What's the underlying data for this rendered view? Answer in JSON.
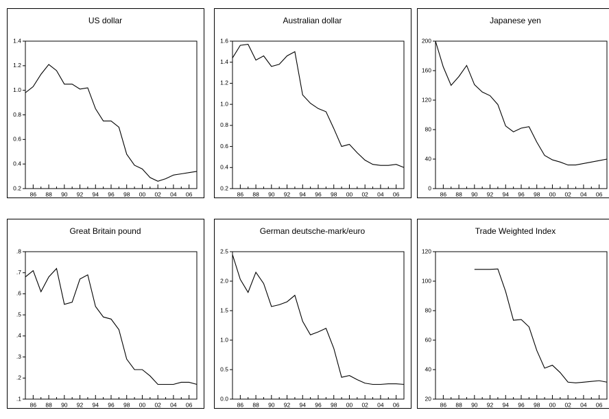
{
  "chart_data": [
    {
      "type": "line",
      "title": "US dollar",
      "color": "#000000",
      "x": [
        1985,
        1986,
        1987,
        1988,
        1989,
        1990,
        1991,
        1992,
        1993,
        1994,
        1995,
        1996,
        1997,
        1998,
        1999,
        2000,
        2001,
        2002,
        2003,
        2004,
        2005,
        2006,
        2007
      ],
      "values": [
        0.98,
        1.03,
        1.13,
        1.21,
        1.16,
        1.05,
        1.05,
        1.01,
        1.02,
        0.85,
        0.75,
        0.75,
        0.7,
        0.48,
        0.39,
        0.36,
        0.29,
        0.26,
        0.28,
        0.31,
        0.32,
        0.33,
        0.34
      ],
      "xlim": [
        1985,
        2007
      ],
      "ylim": [
        0.2,
        1.4
      ],
      "yticks": [
        0.2,
        0.4,
        0.6,
        0.8,
        {
          "value": 1,
          "label": "1.0"
        },
        1.2,
        1.4
      ],
      "xticks": [
        {
          "value": 1986,
          "label": "86"
        },
        {
          "value": 1988,
          "label": "88"
        },
        {
          "value": 1990,
          "label": "90"
        },
        {
          "value": 1992,
          "label": "92"
        },
        {
          "value": 1994,
          "label": "94"
        },
        {
          "value": 1996,
          "label": "96"
        },
        {
          "value": 1998,
          "label": "98"
        },
        {
          "value": 2000,
          "label": "00"
        },
        {
          "value": 2002,
          "label": "02"
        },
        {
          "value": 2004,
          "label": "04"
        },
        {
          "value": 2006,
          "label": "06"
        }
      ],
      "xminorticks": [
        1987,
        1989,
        1991,
        1993,
        1995,
        1997,
        1999,
        2001,
        2003,
        2005
      ]
    },
    {
      "type": "line",
      "title": "Australian dollar",
      "color": "#000000",
      "x": [
        1985,
        1986,
        1987,
        1988,
        1989,
        1990,
        1991,
        1992,
        1993,
        1994,
        1995,
        1996,
        1997,
        1998,
        1999,
        2000,
        2001,
        2002,
        2003,
        2004,
        2005,
        2006,
        2007
      ],
      "values": [
        1.44,
        1.56,
        1.57,
        1.42,
        1.46,
        1.36,
        1.38,
        1.46,
        1.5,
        1.09,
        1.01,
        0.96,
        0.93,
        0.77,
        0.6,
        0.62,
        0.54,
        0.47,
        0.43,
        0.42,
        0.42,
        0.43,
        0.4
      ],
      "xlim": [
        1985,
        2007
      ],
      "ylim": [
        0.2,
        1.6
      ],
      "yticks": [
        0.2,
        0.4,
        0.6,
        0.8,
        {
          "value": 1,
          "label": "1.0"
        },
        1.2,
        1.4,
        1.6
      ],
      "xticks": [
        {
          "value": 1986,
          "label": "86"
        },
        {
          "value": 1988,
          "label": "88"
        },
        {
          "value": 1990,
          "label": "90"
        },
        {
          "value": 1992,
          "label": "92"
        },
        {
          "value": 1994,
          "label": "94"
        },
        {
          "value": 1996,
          "label": "96"
        },
        {
          "value": 1998,
          "label": "98"
        },
        {
          "value": 2000,
          "label": "00"
        },
        {
          "value": 2002,
          "label": "02"
        },
        {
          "value": 2004,
          "label": "04"
        },
        {
          "value": 2006,
          "label": "06"
        }
      ],
      "xminorticks": [
        1987,
        1989,
        1991,
        1993,
        1995,
        1997,
        1999,
        2001,
        2003,
        2005
      ]
    },
    {
      "type": "line",
      "title": "Japanese yen",
      "color": "#000000",
      "x": [
        1985,
        1986,
        1987,
        1988,
        1989,
        1990,
        1991,
        1992,
        1993,
        1994,
        1995,
        1996,
        1997,
        1998,
        1999,
        2000,
        2001,
        2002,
        2003,
        2004,
        2005,
        2006,
        2007
      ],
      "values": [
        200,
        165,
        140,
        152,
        167,
        141,
        131,
        126,
        114,
        85,
        77,
        82,
        84,
        63,
        45,
        39,
        36,
        32,
        32,
        34,
        36,
        38,
        40
      ],
      "xlim": [
        1985,
        2007
      ],
      "ylim": [
        0,
        200
      ],
      "yticks": [
        0,
        40,
        80,
        120,
        160,
        200
      ],
      "xticks": [
        {
          "value": 1986,
          "label": "86"
        },
        {
          "value": 1988,
          "label": "88"
        },
        {
          "value": 1990,
          "label": "90"
        },
        {
          "value": 1992,
          "label": "92"
        },
        {
          "value": 1994,
          "label": "94"
        },
        {
          "value": 1996,
          "label": "96"
        },
        {
          "value": 1998,
          "label": "98"
        },
        {
          "value": 2000,
          "label": "00"
        },
        {
          "value": 2002,
          "label": "02"
        },
        {
          "value": 2004,
          "label": "04"
        },
        {
          "value": 2006,
          "label": "06"
        }
      ],
      "xminorticks": [
        1987,
        1989,
        1991,
        1993,
        1995,
        1997,
        1999,
        2001,
        2003,
        2005
      ]
    },
    {
      "type": "line",
      "title": "Great Britain pound",
      "color": "#000000",
      "x": [
        1985,
        1986,
        1987,
        1988,
        1989,
        1990,
        1991,
        1992,
        1993,
        1994,
        1995,
        1996,
        1997,
        1998,
        1999,
        2000,
        2001,
        2002,
        2003,
        2004,
        2005,
        2006,
        2007
      ],
      "values": [
        0.68,
        0.71,
        0.61,
        0.68,
        0.72,
        0.55,
        0.56,
        0.67,
        0.69,
        0.54,
        0.49,
        0.48,
        0.43,
        0.29,
        0.24,
        0.24,
        0.21,
        0.17,
        0.17,
        0.17,
        0.18,
        0.18,
        0.17
      ],
      "xlim": [
        1985,
        2007
      ],
      "ylim": [
        0.1,
        0.8
      ],
      "yticks": [
        {
          "value": 0.1,
          "label": ".1"
        },
        {
          "value": 0.2,
          "label": ".2"
        },
        {
          "value": 0.3,
          "label": ".3"
        },
        {
          "value": 0.4,
          "label": ".4"
        },
        {
          "value": 0.5,
          "label": ".5"
        },
        {
          "value": 0.6,
          "label": ".6"
        },
        {
          "value": 0.7,
          "label": ".7"
        },
        {
          "value": 0.8,
          "label": ".8"
        }
      ],
      "xticks": [
        {
          "value": 1986,
          "label": "86"
        },
        {
          "value": 1988,
          "label": "88"
        },
        {
          "value": 1990,
          "label": "90"
        },
        {
          "value": 1992,
          "label": "92"
        },
        {
          "value": 1994,
          "label": "94"
        },
        {
          "value": 1996,
          "label": "96"
        },
        {
          "value": 1998,
          "label": "98"
        },
        {
          "value": 2000,
          "label": "00"
        },
        {
          "value": 2002,
          "label": "02"
        },
        {
          "value": 2004,
          "label": "04"
        },
        {
          "value": 2006,
          "label": "06"
        }
      ],
      "xminorticks": [
        1987,
        1989,
        1991,
        1993,
        1995,
        1997,
        1999,
        2001,
        2003,
        2005
      ]
    },
    {
      "type": "line",
      "title": "German deutsche-mark/euro",
      "color": "#000000",
      "x": [
        1985,
        1986,
        1987,
        1988,
        1989,
        1990,
        1991,
        1992,
        1993,
        1994,
        1995,
        1996,
        1997,
        1998,
        1999,
        2000,
        2001,
        2002,
        2003,
        2004,
        2005,
        2006,
        2007
      ],
      "values": [
        2.45,
        2.03,
        1.81,
        2.15,
        1.96,
        1.57,
        1.6,
        1.65,
        1.76,
        1.32,
        1.09,
        1.14,
        1.2,
        0.86,
        0.37,
        0.4,
        0.33,
        0.27,
        0.25,
        0.25,
        0.26,
        0.26,
        0.25
      ],
      "xlim": [
        1985,
        2007
      ],
      "ylim": [
        0,
        2.5
      ],
      "yticks": [
        {
          "value": 0,
          "label": "0.0"
        },
        0.5,
        {
          "value": 1,
          "label": "1.0"
        },
        1.5,
        {
          "value": 2,
          "label": "2.0"
        },
        2.5
      ],
      "xticks": [
        {
          "value": 1986,
          "label": "86"
        },
        {
          "value": 1988,
          "label": "88"
        },
        {
          "value": 1990,
          "label": "90"
        },
        {
          "value": 1992,
          "label": "92"
        },
        {
          "value": 1994,
          "label": "94"
        },
        {
          "value": 1996,
          "label": "96"
        },
        {
          "value": 1998,
          "label": "98"
        },
        {
          "value": 2000,
          "label": "00"
        },
        {
          "value": 2002,
          "label": "02"
        },
        {
          "value": 2004,
          "label": "04"
        },
        {
          "value": 2006,
          "label": "06"
        }
      ],
      "xminorticks": [
        1987,
        1989,
        1991,
        1993,
        1995,
        1997,
        1999,
        2001,
        2003,
        2005
      ]
    },
    {
      "type": "line",
      "title": "Trade Weighted Index",
      "color": "#000000",
      "x": [
        1985,
        1986,
        1987,
        1988,
        1989,
        1990,
        1991,
        1992,
        1993,
        1994,
        1995,
        1996,
        1997,
        1998,
        1999,
        2000,
        2001,
        2002,
        2003,
        2004,
        2005,
        2006,
        2007
      ],
      "values": [
        null,
        null,
        null,
        null,
        null,
        108,
        108,
        108,
        108.3,
        93,
        73.5,
        74,
        69,
        53,
        41,
        43,
        38,
        31.5,
        31,
        31.5,
        32,
        32.5,
        31.5
      ],
      "xlim": [
        1985,
        2007
      ],
      "ylim": [
        20,
        120
      ],
      "yticks": [
        20,
        40,
        60,
        80,
        100,
        120
      ],
      "xticks": [
        {
          "value": 1986,
          "label": "86"
        },
        {
          "value": 1988,
          "label": "88"
        },
        {
          "value": 1990,
          "label": "90"
        },
        {
          "value": 1992,
          "label": "92"
        },
        {
          "value": 1994,
          "label": "94"
        },
        {
          "value": 1996,
          "label": "96"
        },
        {
          "value": 1998,
          "label": "98"
        },
        {
          "value": 2000,
          "label": "00"
        },
        {
          "value": 2002,
          "label": "02"
        },
        {
          "value": 2004,
          "label": "04"
        },
        {
          "value": 2006,
          "label": "06"
        }
      ],
      "xminorticks": [
        1987,
        1989,
        1991,
        1993,
        1995,
        1997,
        1999,
        2001,
        2003,
        2005
      ]
    }
  ]
}
